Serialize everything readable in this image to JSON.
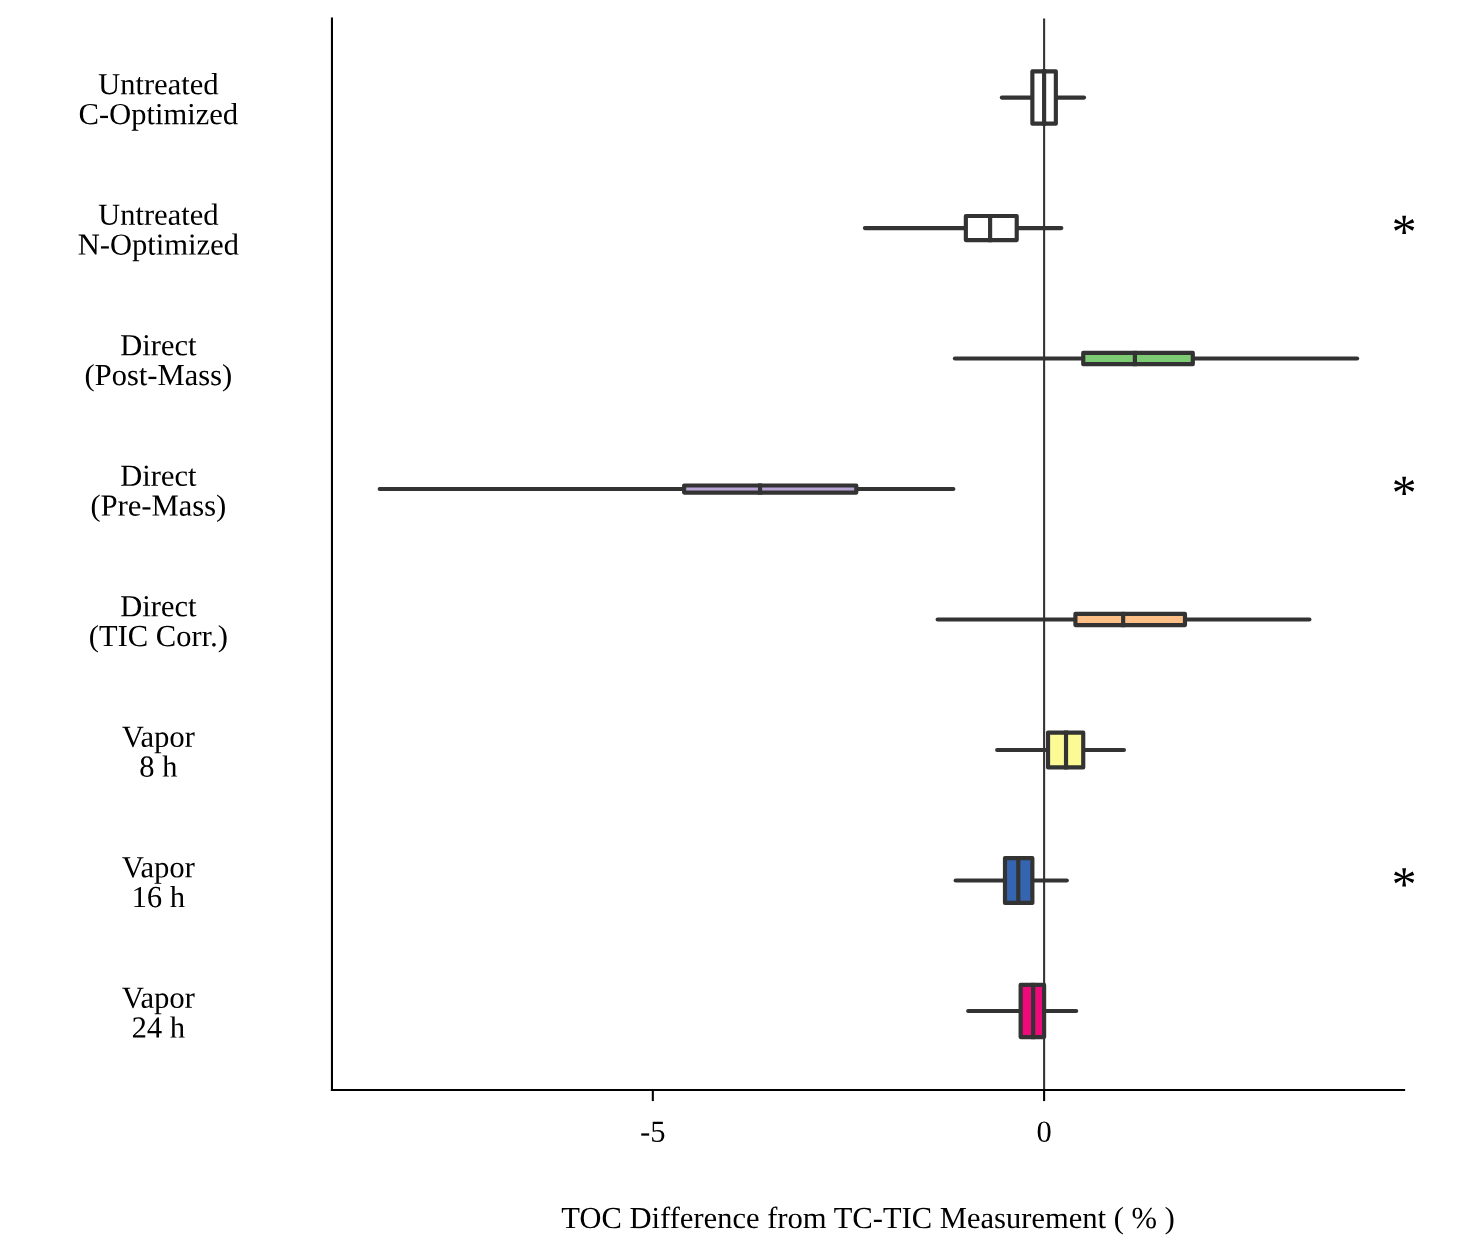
{
  "chart_data": {
    "type": "box",
    "orientation": "horizontal",
    "xlabel": "TOC Difference from TC-TIC Measurement ( % )",
    "categories": [
      "Untreated\nC-Optimized",
      "Untreated\nN-Optimized",
      "Direct\n(Post-Mass)",
      "Direct\n(Pre-Mass)",
      "Direct\n(TIC Corr.)",
      "Vapor\n8 h",
      "Vapor\n16 h",
      "Vapor\n24 h"
    ],
    "boxes": [
      {
        "low": -0.54,
        "q1": -0.15,
        "median": 0,
        "q3": 0.15,
        "high": 0.51
      },
      {
        "low": -2.29,
        "q1": -1.0,
        "median": -0.69,
        "q3": -0.35,
        "high": 0.22
      },
      {
        "low": -1.14,
        "q1": 0.5,
        "median": 1.16,
        "q3": 1.9,
        "high": 4.0
      },
      {
        "low": -8.49,
        "q1": -4.6,
        "median": -3.63,
        "q3": -2.4,
        "high": -1.16
      },
      {
        "low": -1.36,
        "q1": 0.4,
        "median": 1.01,
        "q3": 1.8,
        "high": 3.39
      },
      {
        "low": -0.6,
        "q1": 0.05,
        "median": 0.28,
        "q3": 0.5,
        "high": 1.02
      },
      {
        "low": -1.13,
        "q1": -0.5,
        "median": -0.33,
        "q3": -0.15,
        "high": 0.29
      },
      {
        "low": -0.97,
        "q1": -0.3,
        "median": -0.14,
        "q3": 0.0,
        "high": 0.41
      }
    ],
    "colors": [
      "#ffffff",
      "#ffffff",
      "#7dcb72",
      "#b8a5d6",
      "#fdbf85",
      "#fbfa94",
      "#3565b0",
      "#ee0a7a"
    ],
    "xlim": [
      -9.1,
      4.6
    ],
    "xticks": [
      -5,
      0
    ],
    "ref_lines": [
      {
        "axis": "x",
        "value": 0,
        "color": "#333333"
      }
    ],
    "annotations": [
      "*",
      "*",
      "*"
    ],
    "grid": false,
    "legend": false
  }
}
